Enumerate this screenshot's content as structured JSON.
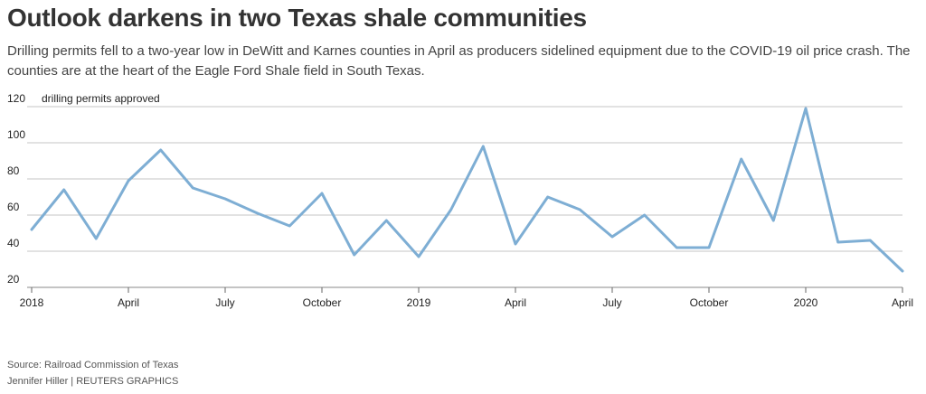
{
  "header": {
    "title": "Outlook darkens in two Texas shale communities",
    "subtitle": "Drilling permits fell to a two-year low in DeWitt and Karnes counties in April as producers sidelined equipment due to the COVID-19 oil price crash. The counties are at the heart of the Eagle Ford Shale field in South Texas."
  },
  "footer": {
    "source": "Source: Railroad Commission of Texas",
    "credit": "Jennifer Hiller   | REUTERS GRAPHICS"
  },
  "colors": {
    "series": "#7eaed4",
    "grid": "#c4c4c4"
  },
  "chart_data": {
    "type": "line",
    "title": "",
    "ylabel": "drilling permits approved",
    "xlabel": "",
    "ylim": [
      20,
      120
    ],
    "yticks": [
      20,
      40,
      60,
      80,
      100,
      120
    ],
    "grid": true,
    "x_tick_labels": [
      "2018",
      "April",
      "July",
      "October",
      "2019",
      "April",
      "July",
      "October",
      "2020",
      "April"
    ],
    "x": [
      "2018-01",
      "2018-02",
      "2018-03",
      "2018-04",
      "2018-05",
      "2018-06",
      "2018-07",
      "2018-08",
      "2018-09",
      "2018-10",
      "2018-11",
      "2018-12",
      "2019-01",
      "2019-02",
      "2019-03",
      "2019-04",
      "2019-05",
      "2019-06",
      "2019-07",
      "2019-08",
      "2019-09",
      "2019-10",
      "2019-11",
      "2019-12",
      "2020-01",
      "2020-02",
      "2020-03",
      "2020-04"
    ],
    "series": [
      {
        "name": "",
        "values": [
          52,
          74,
          47,
          79,
          96,
          75,
          69,
          61,
          54,
          72,
          38,
          57,
          37,
          63,
          98,
          44,
          70,
          63,
          48,
          60,
          42,
          42,
          91,
          57,
          119,
          45,
          46,
          29
        ]
      }
    ]
  }
}
